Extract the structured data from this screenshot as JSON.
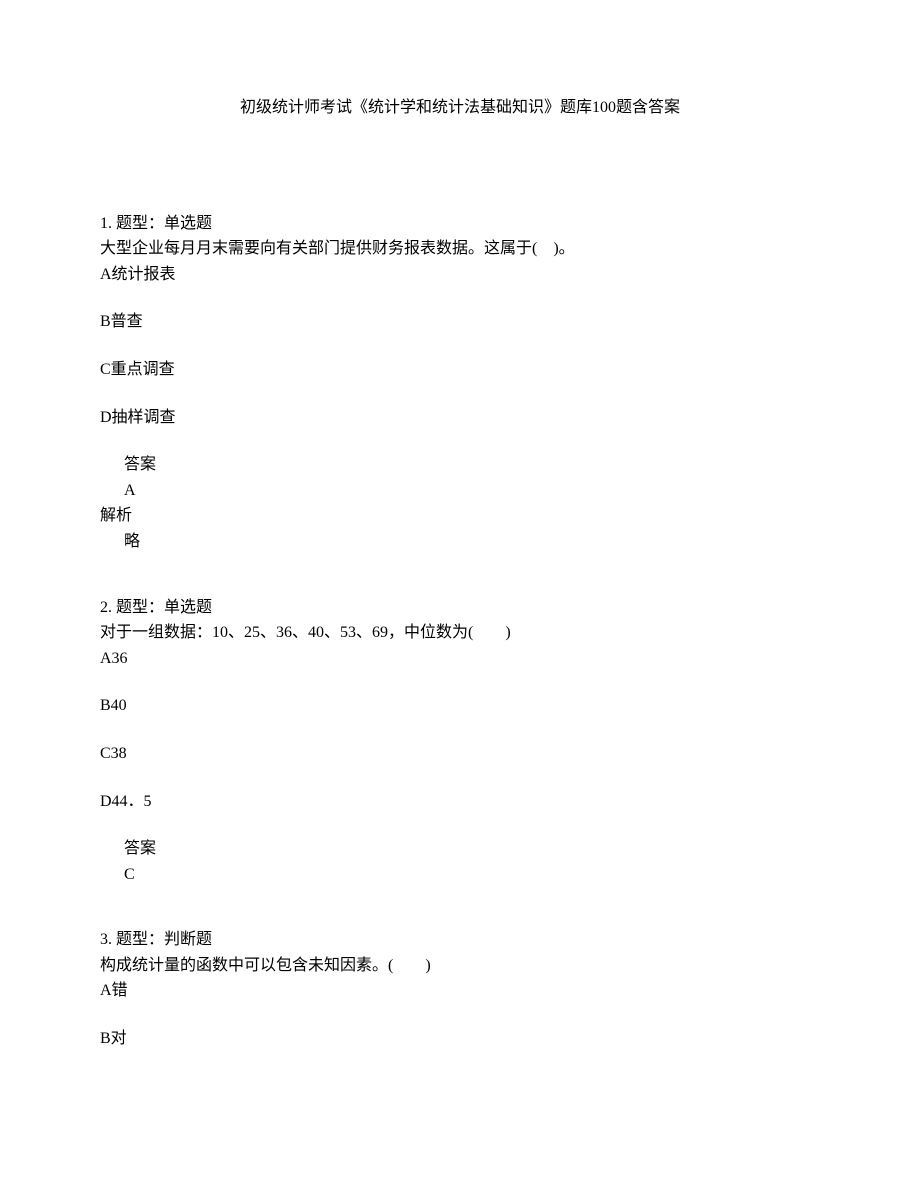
{
  "title": "初级统计师考试《统计学和统计法基础知识》题库100题含答案",
  "questions": [
    {
      "number": "1.",
      "type_label": "题型：单选题",
      "text": "大型企业每月月末需要向有关部门提供财务报表数据。这属于(　)。",
      "options": [
        "A统计报表",
        "B普查",
        "C重点调查",
        "D抽样调查"
      ],
      "answer_label": "答案",
      "answer": "A",
      "explanation_label": "解析",
      "explanation": "略"
    },
    {
      "number": "2.",
      "type_label": "题型：单选题",
      "text": "对于一组数据：10、25、36、40、53、69，中位数为(　　)",
      "options": [
        "A36",
        "B40",
        "C38",
        "D44．5"
      ],
      "answer_label": "答案",
      "answer": "C"
    },
    {
      "number": "3.",
      "type_label": "题型：判断题",
      "text": "构成统计量的函数中可以包含未知因素。(　　)",
      "options": [
        "A错",
        "B对"
      ]
    }
  ]
}
